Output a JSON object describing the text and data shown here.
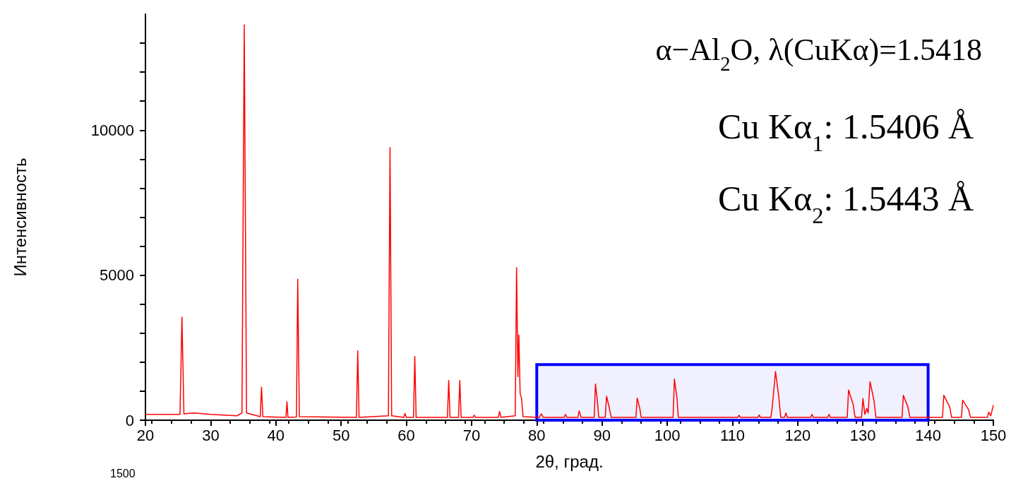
{
  "chart_data": {
    "type": "line",
    "title": "α−Al$_{2}$O, λ(CuKα)=1.5418",
    "xlabel": "2θ, град.",
    "ylabel": "Интенсивность",
    "annotations": [
      "Cu Kα$_{1}$: 1.5406 Å",
      "Cu Kα$_{2}$: 1.5443 Å",
      "1500"
    ],
    "series": [
      {
        "color": "#ff0000",
        "x": [
          20,
          25.3,
          25.6,
          25.9,
          27.5,
          30,
          34,
          34.8,
          35.15,
          35.5,
          37.6,
          37.8,
          38,
          41.55,
          41.7,
          41.85,
          43.15,
          43.35,
          43.6,
          52.35,
          52.55,
          52.75,
          57.25,
          57.5,
          57.75,
          59.6,
          59.8,
          60,
          61.1,
          61.3,
          61.5,
          66.3,
          66.5,
          66.7,
          68,
          68.2,
          68.4,
          70.2,
          70.4,
          70.6,
          74.1,
          74.3,
          74.5,
          76.7,
          76.9,
          77.1,
          77.25,
          77.45,
          77.65,
          77.9,
          80.4,
          80.7,
          81,
          84.2,
          84.4,
          84.6,
          86.3,
          86.5,
          86.8,
          88.8,
          89,
          89.3,
          89.5,
          90.5,
          90.7,
          91.1,
          91.4,
          95.2,
          95.4,
          95.8,
          96,
          100.9,
          101.1,
          101.5,
          101.7,
          110.8,
          111,
          111.2,
          113.9,
          114.1,
          114.3,
          115.9,
          116.1,
          116.6,
          117.1,
          117.4,
          118,
          118.2,
          118.4,
          122,
          122.2,
          122.4,
          124.6,
          124.8,
          125,
          127.6,
          127.8,
          128.5,
          128.8,
          129.8,
          130,
          130.3,
          130.6,
          130.8,
          131.1,
          131.7,
          132,
          136,
          136.2,
          136.9,
          137.2,
          142.2,
          142.4,
          143.3,
          143.6,
          145.1,
          145.3,
          146.2,
          146.5,
          149.1,
          149.3,
          149.6,
          150
        ],
        "values": [
          200,
          200,
          3550,
          220,
          250,
          200,
          150,
          250,
          13630,
          250,
          120,
          1140,
          120,
          100,
          640,
          100,
          110,
          4860,
          120,
          100,
          2390,
          100,
          150,
          9400,
          150,
          100,
          230,
          100,
          100,
          2200,
          100,
          100,
          1370,
          100,
          100,
          1370,
          100,
          100,
          170,
          100,
          100,
          300,
          100,
          150,
          5260,
          1500,
          2940,
          900,
          780,
          120,
          100,
          220,
          100,
          100,
          200,
          100,
          100,
          320,
          100,
          100,
          1250,
          650,
          100,
          100,
          830,
          450,
          100,
          100,
          760,
          400,
          100,
          100,
          1420,
          750,
          100,
          100,
          170,
          100,
          100,
          180,
          100,
          100,
          450,
          1680,
          820,
          100,
          100,
          250,
          100,
          100,
          200,
          100,
          100,
          200,
          100,
          100,
          1040,
          550,
          100,
          100,
          750,
          200,
          400,
          250,
          1330,
          680,
          100,
          100,
          860,
          460,
          100,
          100,
          860,
          460,
          100,
          100,
          690,
          360,
          100,
          100,
          280,
          150,
          520
        ]
      }
    ],
    "xlim": [
      20,
      150
    ],
    "xticks": [
      20,
      30,
      40,
      50,
      60,
      70,
      80,
      90,
      100,
      110,
      120,
      130,
      140,
      150
    ],
    "ylim": [
      0,
      14000
    ],
    "yticks": [
      0,
      {
        "value": 1000,
        "label": null
      },
      {
        "value": 2000,
        "label": null
      },
      {
        "value": 3000,
        "label": null
      },
      {
        "value": 4000,
        "label": null
      },
      5000,
      {
        "value": 6000,
        "label": null
      },
      {
        "value": 7000,
        "label": null
      },
      {
        "value": 8000,
        "label": null
      },
      {
        "value": 9000,
        "label": null
      },
      10000,
      {
        "value": 11000,
        "label": null
      },
      {
        "value": 12000,
        "label": null
      },
      {
        "value": 13000,
        "label": null
      }
    ],
    "bands": [
      {
        "axis": "x",
        "from": 80,
        "to": 140,
        "color": "#0000ff"
      }
    ],
    "grid": false,
    "marker": "none",
    "line_style": "solid"
  }
}
